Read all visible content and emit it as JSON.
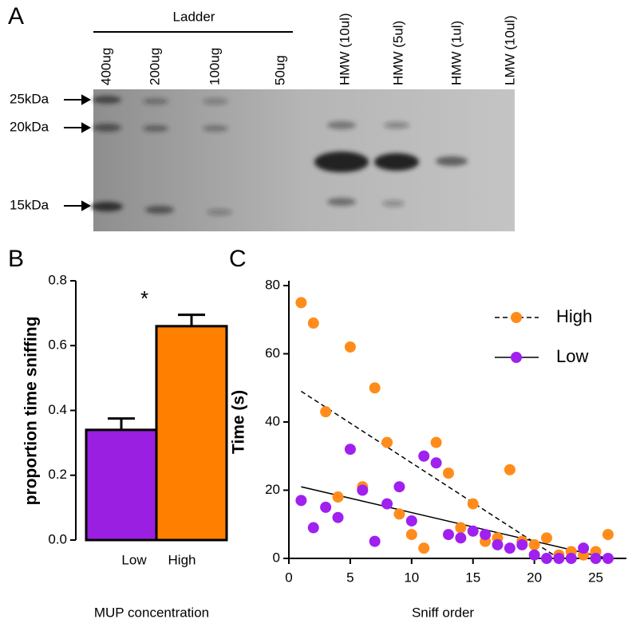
{
  "gel": {
    "label": "A",
    "ladder_label": "Ladder",
    "lanes": [
      "400ug",
      "200ug",
      "100ug",
      "50ug",
      "HMW (10ul)",
      "HMW (5ul)",
      "HMW (1ul)",
      "LMW (10ul)"
    ],
    "markers": [
      "25kDa",
      "20kDa",
      "15kDa"
    ]
  },
  "chart_data": [
    {
      "type": "bar",
      "panel_label": "B",
      "annotation": "*",
      "y_label": "proportion time sniffing",
      "x_label": "MUP concentration",
      "categories": [
        "Low",
        "High"
      ],
      "values": [
        0.34,
        0.66
      ],
      "errors": [
        0.035,
        0.035
      ],
      "colors": [
        "#9b1fe0",
        "#ff8000"
      ],
      "ylim": [
        0,
        0.8
      ],
      "yticks": [
        {
          "value": 0,
          "label": "0.0"
        },
        {
          "value": 0.2,
          "label": "0.2"
        },
        {
          "value": 0.4,
          "label": "0.4"
        },
        {
          "value": 0.6,
          "label": "0.6"
        },
        {
          "value": 0.8,
          "label": "0.8"
        }
      ]
    },
    {
      "type": "scatter",
      "panel_label": "C",
      "y_label": "Time (s)",
      "x_label": "Sniff order",
      "xlim": [
        0,
        27.5
      ],
      "xticks": [
        0,
        5,
        10,
        15,
        20,
        25
      ],
      "ylim": [
        0,
        80
      ],
      "yticks": [
        0,
        20,
        40,
        60,
        80
      ],
      "legend": "upper right",
      "series": [
        {
          "name": "High",
          "color": "#ff8c1a",
          "line": "dashed",
          "x": [
            1,
            2,
            3,
            4,
            5,
            6,
            7,
            8,
            9,
            10,
            11,
            12,
            13,
            14,
            15,
            16,
            17,
            18,
            19,
            20,
            21,
            22,
            23,
            24,
            25,
            26
          ],
          "values": [
            75,
            69,
            43,
            18,
            62,
            21,
            50,
            34,
            13,
            7,
            3,
            34,
            25,
            9,
            16,
            5,
            6,
            26,
            5,
            4,
            6,
            1,
            2,
            1,
            2,
            7
          ],
          "fit": {
            "x": [
              1,
              22
            ],
            "y": [
              49,
              0
            ]
          }
        },
        {
          "name": "Low",
          "color": "#a020f0",
          "line": "solid",
          "x": [
            1,
            2,
            3,
            4,
            5,
            6,
            7,
            8,
            9,
            10,
            11,
            12,
            13,
            14,
            15,
            16,
            17,
            18,
            19,
            20,
            21,
            22,
            23,
            24,
            25,
            26
          ],
          "values": [
            17,
            9,
            15,
            12,
            32,
            20,
            5,
            16,
            21,
            11,
            30,
            28,
            7,
            6,
            8,
            7,
            4,
            3,
            4,
            1,
            0,
            0,
            0,
            3,
            0,
            0
          ],
          "fit": {
            "x": [
              1,
              26
            ],
            "y": [
              21,
              0
            ]
          }
        }
      ]
    }
  ]
}
